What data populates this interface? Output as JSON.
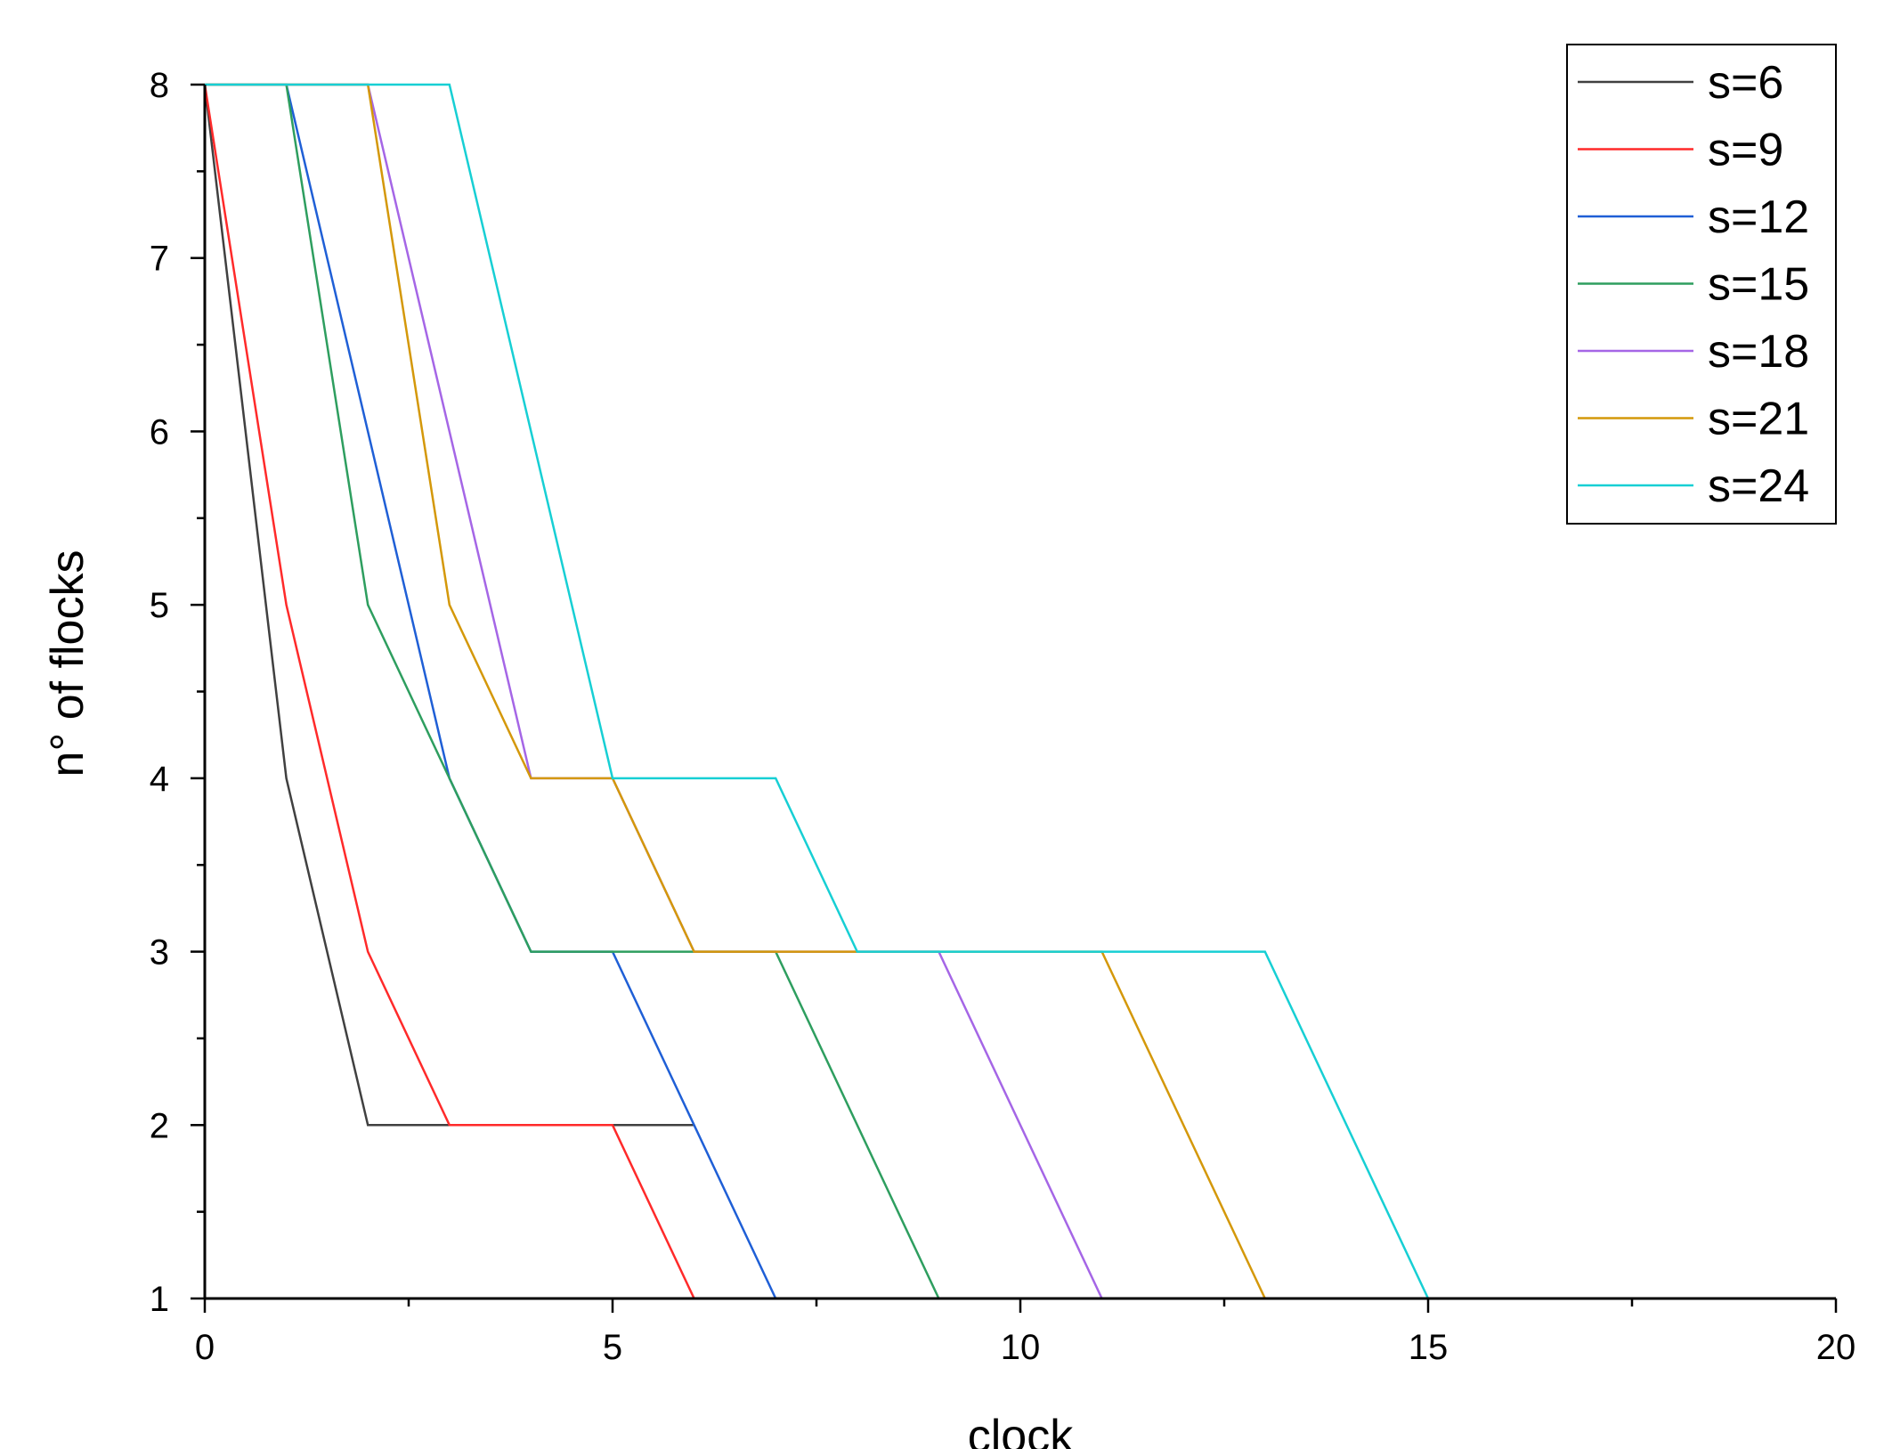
{
  "chart_data": {
    "type": "line",
    "title": "",
    "xlabel": "clock",
    "ylabel": "n° of flocks",
    "xlim": [
      0,
      20
    ],
    "ylim": [
      1,
      8
    ],
    "xticks": [
      0,
      5,
      10,
      15,
      20
    ],
    "yticks": [
      1,
      2,
      3,
      4,
      5,
      6,
      7,
      8
    ],
    "grid": false,
    "legend_position": "top-right",
    "series": [
      {
        "name": "s=6",
        "color": "#404040",
        "x": [
          0,
          1,
          2,
          6
        ],
        "y": [
          8,
          4,
          2,
          2
        ]
      },
      {
        "name": "s=9",
        "color": "#ff2a2a",
        "x": [
          0,
          1,
          2,
          3,
          5,
          6,
          20
        ],
        "y": [
          8,
          5,
          3,
          2,
          2,
          1,
          1
        ]
      },
      {
        "name": "s=12",
        "color": "#1f5fd6",
        "x": [
          0,
          1,
          3,
          4,
          5,
          7,
          20
        ],
        "y": [
          8,
          8,
          4,
          3,
          3,
          1,
          1
        ]
      },
      {
        "name": "s=15",
        "color": "#2e9e5f",
        "x": [
          0,
          1,
          2,
          4,
          7,
          9,
          20
        ],
        "y": [
          8,
          8,
          5,
          3,
          3,
          1,
          1
        ]
      },
      {
        "name": "s=18",
        "color": "#a566e6",
        "x": [
          0,
          2,
          4,
          5,
          6,
          9,
          11,
          20
        ],
        "y": [
          8,
          8,
          4,
          4,
          3,
          3,
          1,
          1
        ]
      },
      {
        "name": "s=21",
        "color": "#d4980a",
        "x": [
          0,
          2,
          3,
          4,
          5,
          6,
          11,
          13,
          20
        ],
        "y": [
          8,
          8,
          5,
          4,
          4,
          3,
          3,
          1,
          1
        ]
      },
      {
        "name": "s=24",
        "color": "#17cfd4",
        "x": [
          0,
          3,
          5,
          7,
          8,
          13,
          15,
          20
        ],
        "y": [
          8,
          8,
          4,
          4,
          3,
          3,
          1,
          1
        ]
      }
    ]
  }
}
